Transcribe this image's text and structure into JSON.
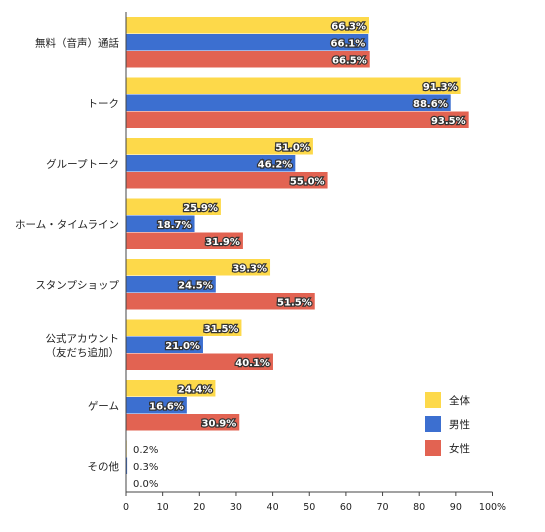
{
  "chart_data": {
    "type": "bar",
    "orientation": "horizontal",
    "categories": [
      [
        "無料（音声）通話"
      ],
      [
        "トーク"
      ],
      [
        "グループトーク"
      ],
      [
        "ホーム・タイムライン"
      ],
      [
        "スタンプショップ"
      ],
      [
        "公式アカウント",
        "（友だち追加）"
      ],
      [
        "ゲーム"
      ],
      [
        "その他"
      ]
    ],
    "series": [
      {
        "name": "全体",
        "color": "#fdd94a",
        "values": [
          66.3,
          91.3,
          51.0,
          25.9,
          39.3,
          31.5,
          24.4,
          0.2
        ],
        "labels": [
          "66.3%",
          "91.3%",
          "51.0%",
          "25.9%",
          "39.3%",
          "31.5%",
          "24.4%",
          "0.2%"
        ]
      },
      {
        "name": "男性",
        "color": "#3c6fd0",
        "values": [
          66.1,
          88.6,
          46.2,
          18.7,
          24.5,
          21.0,
          16.6,
          0.3
        ],
        "labels": [
          "66.1%",
          "88.6%",
          "46.2%",
          "18.7%",
          "24.5%",
          "21.0%",
          "16.6%",
          "0.3%"
        ]
      },
      {
        "name": "女性",
        "color": "#e26352",
        "values": [
          66.5,
          93.5,
          55.0,
          31.9,
          51.5,
          40.1,
          30.9,
          0.0
        ],
        "labels": [
          "66.5%",
          "93.5%",
          "55.0%",
          "31.9%",
          "51.5%",
          "40.1%",
          "30.9%",
          "0.0%"
        ]
      }
    ],
    "xlim": [
      0,
      100
    ],
    "xticks": [
      "0",
      "10",
      "20",
      "30",
      "40",
      "50",
      "60",
      "70",
      "80",
      "90",
      "100%"
    ],
    "legend_position": "bottom-right",
    "grid": false
  }
}
